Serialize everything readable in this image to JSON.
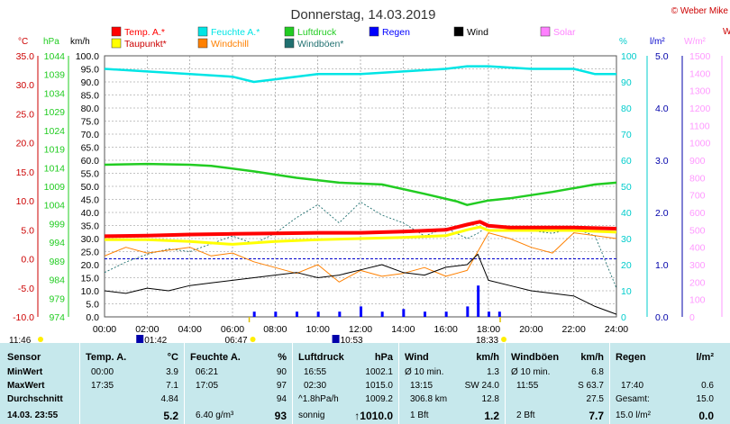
{
  "title": "Donnerstag, 14.03.2019",
  "copyright": "© Weber Mike",
  "unit_labels": {
    "temp": "°C",
    "hpa": "hPa",
    "kmh": "km/h",
    "pct": "%",
    "rain": "l/m²",
    "solar": "W/m²",
    "w_cut": "W"
  },
  "legend": [
    {
      "label": "Temp. A.*",
      "color": "#ff0000"
    },
    {
      "label": "Feuchte A.*",
      "color": "#00e5e5"
    },
    {
      "label": "Luftdruck",
      "color": "#22cc22"
    },
    {
      "label": "Regen",
      "color": "#0000ff"
    },
    {
      "label": "Wind",
      "color": "#000000"
    },
    {
      "label": "Solar",
      "color": "#ff80ff"
    },
    {
      "label": "Taupunkt*",
      "color": "#ffff00"
    },
    {
      "label": "Windchill",
      "color": "#ff8000"
    },
    {
      "label": "Windböen*",
      "color": "#207070"
    }
  ],
  "colors": {
    "temp": "#cc0000",
    "hpa": "#22cc22",
    "kmh": "#000000",
    "pct": "#00cccc",
    "rain": "#0000cc",
    "solar": "#ff99ff",
    "grid": "#888888",
    "table_bg": "#c6e8ec"
  },
  "axes": {
    "temp_ticks": [
      "35.0",
      "30.0",
      "25.0",
      "20.0",
      "15.0",
      "10.0",
      "5.0",
      "0.0",
      "-5.0",
      "-10.0"
    ],
    "hpa_ticks": [
      "1044",
      "1039",
      "1034",
      "1029",
      "1024",
      "1019",
      "1014",
      "1009",
      "1004",
      "999",
      "994",
      "989",
      "984",
      "979",
      "974"
    ],
    "kmh_ticks": [
      "100.0",
      "95.0",
      "90.0",
      "85.0",
      "80.0",
      "75.0",
      "70.0",
      "65.0",
      "60.0",
      "55.0",
      "50.0",
      "45.0",
      "40.0",
      "35.0",
      "30.0",
      "25.0",
      "20.0",
      "15.0",
      "10.0",
      "5.0",
      "0.0"
    ],
    "pct_ticks": [
      "100",
      "90",
      "80",
      "70",
      "60",
      "50",
      "40",
      "30",
      "20",
      "10",
      "0"
    ],
    "rain_ticks": [
      "5.0",
      "4.0",
      "3.0",
      "2.0",
      "1.0",
      "0.0"
    ],
    "solar_ticks": [
      "1500",
      "1400",
      "1300",
      "1200",
      "1100",
      "1000",
      "900",
      "800",
      "700",
      "600",
      "500",
      "400",
      "300",
      "200",
      "100",
      "0"
    ],
    "x_ticks": [
      "00:00",
      "02:00",
      "04:00",
      "06:00",
      "08:00",
      "10:00",
      "12:00",
      "14:00",
      "16:00",
      "18:00",
      "20:00",
      "22:00",
      "24:00"
    ]
  },
  "sun_events": {
    "sunrise": "06:47",
    "sunset": "18:33",
    "moonrise": "11:46",
    "moon_a": "01:42",
    "moon_b": "10:53"
  },
  "chart_data": {
    "type": "line",
    "title": "Donnerstag, 14.03.2019",
    "x_unit": "hours",
    "xlim": [
      0,
      24
    ],
    "series": [
      {
        "name": "Temp. A.*",
        "unit": "°C",
        "x": [
          0,
          2,
          4,
          6,
          8,
          10,
          12,
          14,
          16,
          17,
          17.6,
          18,
          19,
          20,
          22,
          24
        ],
        "y": [
          3.9,
          4.0,
          4.2,
          4.3,
          4.4,
          4.5,
          4.5,
          4.7,
          5.0,
          5.9,
          6.4,
          5.7,
          5.4,
          5.4,
          5.4,
          5.2
        ]
      },
      {
        "name": "Taupunkt*",
        "unit": "°C",
        "x": [
          0,
          2,
          4,
          6,
          8,
          10,
          12,
          14,
          16,
          17,
          17.6,
          18,
          20,
          22,
          24
        ],
        "y": [
          3.3,
          3.3,
          3.0,
          2.5,
          3.0,
          3.3,
          3.5,
          3.7,
          4.0,
          5.0,
          5.5,
          4.9,
          4.9,
          4.9,
          4.6
        ]
      },
      {
        "name": "Feuchte A.*",
        "unit": "%",
        "x": [
          0,
          2,
          4,
          6,
          7,
          8,
          10,
          12,
          14,
          16,
          17,
          18,
          20,
          22,
          23,
          24
        ],
        "y": [
          95,
          94,
          93,
          92,
          90,
          91,
          93,
          93,
          94,
          95,
          96,
          96,
          95,
          95,
          93,
          93
        ]
      },
      {
        "name": "Luftdruck",
        "unit": "hPa",
        "x": [
          0,
          2,
          4,
          5,
          7,
          9,
          11,
          13,
          15,
          16.5,
          17,
          18,
          19,
          21,
          23,
          24
        ],
        "y": [
          1014.8,
          1015.0,
          1014.8,
          1014.5,
          1013.0,
          1011.3,
          1010.0,
          1009.5,
          1007.0,
          1005.0,
          1004.0,
          1005.2,
          1005.8,
          1007.5,
          1009.5,
          1010.0
        ]
      },
      {
        "name": "Wind",
        "unit": "km/h",
        "x": [
          0,
          1,
          2,
          3,
          4,
          5,
          6,
          7,
          8,
          9,
          10,
          11,
          12,
          13,
          14,
          15,
          16,
          17,
          17.5,
          18,
          19,
          20,
          21,
          22,
          23,
          24
        ],
        "y": [
          10,
          9,
          11,
          10,
          12,
          13,
          14,
          15,
          16,
          17,
          15,
          16,
          18,
          20,
          17,
          16,
          19,
          20,
          24,
          14,
          12,
          10,
          9,
          8,
          4,
          1
        ]
      },
      {
        "name": "Windchill",
        "unit": "°C",
        "x": [
          0,
          1,
          2,
          3,
          4,
          5,
          6,
          7,
          8,
          9,
          10,
          11,
          12,
          13,
          14,
          15,
          16,
          17,
          18,
          19,
          20,
          21,
          22,
          23,
          24
        ],
        "y": [
          0.5,
          2.0,
          1.0,
          1.5,
          2.0,
          0.5,
          1.0,
          -0.5,
          -1.5,
          -2.5,
          -1.0,
          -4.0,
          -2.0,
          -3.0,
          -2.5,
          -1.5,
          -3.0,
          -2.0,
          4.5,
          3.5,
          2.0,
          1.0,
          4.5,
          4.0,
          3.5
        ]
      },
      {
        "name": "Windböen*",
        "unit": "km/h",
        "x": [
          0,
          1,
          2,
          3,
          4,
          5,
          6,
          7,
          8,
          9,
          10,
          11,
          12,
          13,
          14,
          15,
          16,
          17,
          17.5,
          18,
          19,
          20,
          21,
          22,
          23,
          24
        ],
        "y": [
          17,
          21,
          24,
          26,
          25,
          28,
          31,
          28,
          32,
          38,
          43,
          36,
          44,
          39,
          36,
          31,
          34,
          30,
          32,
          35,
          34,
          33,
          32,
          34,
          31,
          11
        ]
      },
      {
        "name": "Regen",
        "unit": "l/m²",
        "x": [
          7,
          8,
          9,
          10,
          11,
          12,
          13,
          14,
          15,
          16,
          17,
          17.5,
          18,
          18.5
        ],
        "y": [
          0.1,
          0.1,
          0.1,
          0.1,
          0.1,
          0.2,
          0.1,
          0.15,
          0.1,
          0.1,
          0.2,
          0.6,
          0.1,
          0.1
        ]
      }
    ]
  },
  "table": {
    "sensor": {
      "header": "Sensor",
      "rows": [
        "MinWert",
        "MaxWert",
        "Durchschnitt",
        "14.03. 23:55"
      ]
    },
    "temp": {
      "header": "Temp. A.",
      "unit": "°C",
      "rows": [
        [
          "00:00",
          "3.9"
        ],
        [
          "17:35",
          "7.1"
        ],
        [
          "",
          "4.84"
        ],
        [
          "",
          "5.2"
        ]
      ]
    },
    "feuchte": {
      "header": "Feuchte A.",
      "unit": "%",
      "rows": [
        [
          "06:21",
          "90"
        ],
        [
          "17:05",
          "97"
        ],
        [
          "",
          "94"
        ],
        [
          "6.40 g/m³",
          "93"
        ]
      ]
    },
    "luftdruck": {
      "header": "Luftdruck",
      "unit": "hPa",
      "rows": [
        [
          "16:55",
          "1002.1"
        ],
        [
          "02:30",
          "1015.0"
        ],
        [
          "^1.8hPa/h",
          "1009.2"
        ],
        [
          "sonnig",
          "↑1010.0"
        ]
      ]
    },
    "wind": {
      "header": "Wind",
      "unit": "km/h",
      "rows": [
        [
          "Ø 10 min.",
          "1.3"
        ],
        [
          "13:15",
          "SW 24.0"
        ],
        [
          "306.8 km",
          "12.8"
        ],
        [
          "1 Bft",
          "1.2"
        ]
      ]
    },
    "windboeen": {
      "header": "Windböen",
      "unit": "km/h",
      "rows": [
        [
          "Ø 10 min.",
          "6.8"
        ],
        [
          "11:55",
          "S 63.7"
        ],
        [
          "",
          "27.5"
        ],
        [
          "2 Bft",
          "7.7"
        ]
      ]
    },
    "regen": {
      "header": "Regen",
      "unit": "l/m²",
      "rows": [
        [
          "",
          ""
        ],
        [
          "17:40",
          "0.6"
        ],
        [
          "Gesamt:",
          "15.0"
        ],
        [
          "15.0 l/m²",
          "0.0"
        ]
      ]
    }
  }
}
